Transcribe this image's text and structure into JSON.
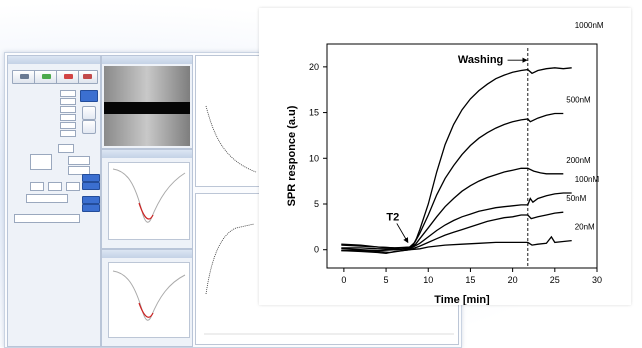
{
  "chart_data": {
    "type": "line",
    "xlabel": "Time [min]",
    "ylabel": "SPR responce (a.u)",
    "xlim": [
      -2,
      30
    ],
    "ylim": [
      -2,
      22.5
    ],
    "x_ticks": [
      "0",
      "5",
      "10",
      "15",
      "20",
      "25",
      "30"
    ],
    "y_ticks": [
      "0",
      "5",
      "10",
      "15",
      "20"
    ],
    "grid": false,
    "series": [
      {
        "name": "1000nM",
        "color": "#000000",
        "values": [
          [
            -0.3,
            0.2
          ],
          [
            2,
            0.2
          ],
          [
            4,
            0.1
          ],
          [
            6,
            0.1
          ],
          [
            7,
            0.2
          ],
          [
            7.8,
            0.3
          ],
          [
            8.2,
            0.5
          ],
          [
            8.6,
            1.2
          ],
          [
            9,
            2.2
          ],
          [
            10,
            5.0
          ],
          [
            11,
            8.5
          ],
          [
            12,
            11.5
          ],
          [
            13,
            13.7
          ],
          [
            14,
            15.3
          ],
          [
            15,
            16.5
          ],
          [
            16,
            17.4
          ],
          [
            17,
            18.1
          ],
          [
            18,
            18.7
          ],
          [
            19,
            19.1
          ],
          [
            20,
            19.4
          ],
          [
            21,
            19.6
          ],
          [
            21.8,
            19.7
          ],
          [
            22.3,
            19.3
          ],
          [
            23,
            19.6
          ],
          [
            24,
            19.8
          ],
          [
            25,
            19.9
          ],
          [
            26,
            19.8
          ],
          [
            27,
            19.9
          ]
        ]
      },
      {
        "name": "500nM",
        "color": "#000000",
        "values": [
          [
            -0.3,
            0.5
          ],
          [
            2,
            0.4
          ],
          [
            4,
            0.3
          ],
          [
            6,
            0.2
          ],
          [
            7.8,
            0.3
          ],
          [
            8.4,
            0.8
          ],
          [
            9,
            1.8
          ],
          [
            10,
            3.8
          ],
          [
            11,
            6.0
          ],
          [
            12,
            7.8
          ],
          [
            13,
            9.2
          ],
          [
            14,
            10.4
          ],
          [
            15,
            11.4
          ],
          [
            16,
            12.2
          ],
          [
            17,
            12.8
          ],
          [
            18,
            13.3
          ],
          [
            19,
            13.7
          ],
          [
            20,
            14.0
          ],
          [
            21,
            14.2
          ],
          [
            21.8,
            14.3
          ],
          [
            22.1,
            14.0
          ],
          [
            23,
            14.4
          ],
          [
            24,
            14.7
          ],
          [
            25,
            14.9
          ],
          [
            26,
            14.9
          ]
        ]
      },
      {
        "name": "200nM",
        "color": "#000000",
        "values": [
          [
            -0.3,
            0.6
          ],
          [
            2,
            0.5
          ],
          [
            4,
            0.3
          ],
          [
            6,
            0.2
          ],
          [
            7.8,
            0.2
          ],
          [
            8.5,
            0.6
          ],
          [
            9,
            1.2
          ],
          [
            10,
            2.4
          ],
          [
            11,
            3.6
          ],
          [
            12,
            4.7
          ],
          [
            13,
            5.6
          ],
          [
            14,
            6.4
          ],
          [
            15,
            7.0
          ],
          [
            16,
            7.5
          ],
          [
            17,
            7.9
          ],
          [
            18,
            8.2
          ],
          [
            19,
            8.5
          ],
          [
            20,
            8.7
          ],
          [
            21,
            8.9
          ],
          [
            21.8,
            8.9
          ],
          [
            22.5,
            8.6
          ],
          [
            23.3,
            8.4
          ],
          [
            24,
            8.3
          ],
          [
            25,
            8.3
          ],
          [
            26,
            8.3
          ]
        ]
      },
      {
        "name": "100nM",
        "color": "#000000",
        "values": [
          [
            -0.3,
            0.1
          ],
          [
            2,
            0.0
          ],
          [
            4,
            -0.1
          ],
          [
            6,
            0.0
          ],
          [
            7.8,
            0.1
          ],
          [
            9,
            0.7
          ],
          [
            10,
            1.4
          ],
          [
            11,
            2.1
          ],
          [
            12,
            2.7
          ],
          [
            13,
            3.2
          ],
          [
            14,
            3.6
          ],
          [
            15,
            3.9
          ],
          [
            16,
            4.2
          ],
          [
            17,
            4.4
          ],
          [
            18,
            4.6
          ],
          [
            19,
            4.7
          ],
          [
            20,
            4.8
          ],
          [
            21,
            4.9
          ],
          [
            21.8,
            4.9
          ],
          [
            22.1,
            5.6
          ],
          [
            22.4,
            5.2
          ],
          [
            23,
            5.6
          ],
          [
            24,
            5.9
          ],
          [
            25,
            6.1
          ],
          [
            26,
            6.2
          ],
          [
            27,
            6.2
          ]
        ]
      },
      {
        "name": "50nM",
        "color": "#000000",
        "values": [
          [
            -0.3,
            -0.1
          ],
          [
            2,
            -0.2
          ],
          [
            4,
            -0.3
          ],
          [
            5,
            -0.4
          ],
          [
            6,
            -0.2
          ],
          [
            7.8,
            0.0
          ],
          [
            9,
            0.4
          ],
          [
            10,
            0.8
          ],
          [
            11,
            1.2
          ],
          [
            12,
            1.6
          ],
          [
            13,
            1.9
          ],
          [
            14,
            2.2
          ],
          [
            15,
            2.5
          ],
          [
            16,
            2.8
          ],
          [
            17,
            3.1
          ],
          [
            18,
            3.3
          ],
          [
            19,
            3.5
          ],
          [
            20,
            3.6
          ],
          [
            21,
            3.8
          ],
          [
            21.8,
            3.8
          ],
          [
            22.2,
            3.4
          ],
          [
            23,
            3.6
          ],
          [
            24,
            3.8
          ],
          [
            25,
            4.0
          ],
          [
            26,
            4.1
          ]
        ]
      },
      {
        "name": "20nM",
        "color": "#000000",
        "values": [
          [
            -0.3,
            -0.1
          ],
          [
            2,
            -0.1
          ],
          [
            4,
            -0.2
          ],
          [
            5.5,
            -0.3
          ],
          [
            7,
            -0.1
          ],
          [
            7.8,
            0.0
          ],
          [
            9,
            0.1
          ],
          [
            10,
            0.3
          ],
          [
            12,
            0.5
          ],
          [
            14,
            0.6
          ],
          [
            16,
            0.7
          ],
          [
            18,
            0.8
          ],
          [
            20,
            0.8
          ],
          [
            21.8,
            0.8
          ],
          [
            22.3,
            0.5
          ],
          [
            23,
            0.6
          ],
          [
            24,
            0.7
          ],
          [
            24.6,
            1.4
          ],
          [
            25,
            0.8
          ],
          [
            26,
            0.9
          ],
          [
            27,
            1.0
          ]
        ]
      }
    ],
    "annotations": [
      {
        "text": "Washing",
        "x": 16.2,
        "y": 20.4,
        "arrow_to": [
          21.8,
          20.4
        ]
      },
      {
        "text": "T2",
        "x": 5.8,
        "y": 3.2,
        "arrow_to": [
          7.7,
          0.8
        ]
      }
    ],
    "vline": {
      "x": 21.8,
      "style": "dashed"
    }
  }
}
